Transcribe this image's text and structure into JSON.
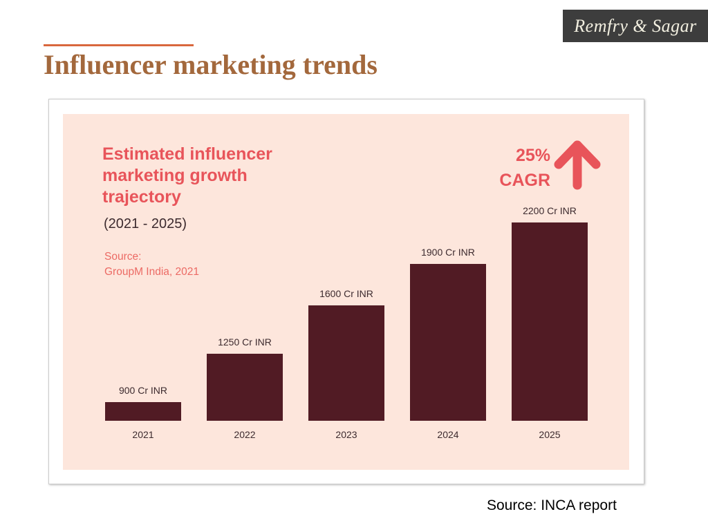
{
  "logo": {
    "text": "Remfry & Sagar"
  },
  "slide": {
    "title": "Influencer marketing trends",
    "source": "Source: INCA report"
  },
  "chart_data": {
    "type": "bar",
    "title_lines": [
      "Estimated influencer",
      "marketing growth",
      "trajectory"
    ],
    "subtitle": "(2021 - 2025)",
    "source_lines": [
      "Source:",
      "GroupM India, 2021"
    ],
    "annotation": {
      "value": "25%",
      "label": "CAGR"
    },
    "categories": [
      "2021",
      "2022",
      "2023",
      "2024",
      "2025"
    ],
    "values": [
      900,
      1250,
      1600,
      1900,
      2200
    ],
    "data_labels": [
      "900 Cr INR",
      "1250 Cr INR",
      "1600 Cr INR",
      "1900 Cr INR",
      "2200 Cr INR"
    ],
    "unit": "Cr INR",
    "ylim": [
      765,
      2200
    ],
    "bar_color": "#511b24",
    "accent_color": "#e8545a"
  }
}
